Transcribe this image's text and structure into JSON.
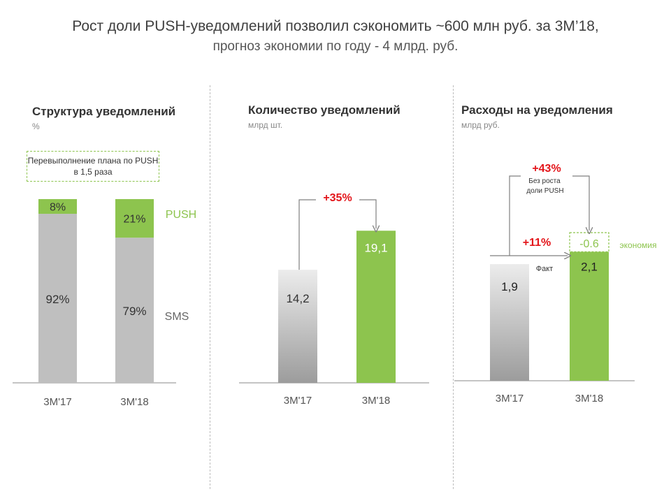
{
  "slide": {
    "title_line1": "Рост доли PUSH-уведомлений позволил сэкономить ~600 млн руб. за 3М’18,",
    "title_line2": "прогноз экономии по году - 4 млрд. руб."
  },
  "colors": {
    "green": "#8dc44e",
    "gray": "#bfbfbf",
    "red": "#e3151a",
    "dark_gray": "#9c9c9c"
  },
  "chart_data": [
    {
      "type": "bar",
      "stacked": true,
      "title": "Структура уведомлений",
      "unit": "%",
      "categories": [
        "3M'17",
        "3M'18"
      ],
      "series": [
        {
          "name": "SMS",
          "values": [
            92,
            79
          ],
          "labels": [
            "92%",
            "79%"
          ]
        },
        {
          "name": "PUSH",
          "values": [
            8,
            21
          ],
          "labels": [
            "8%",
            "21%"
          ]
        }
      ],
      "annotation": "Перевыполнение плана по PUSH в 1,5 раза"
    },
    {
      "type": "bar",
      "title": "Количество уведомлений",
      "unit": "млрд шт.",
      "categories": [
        "3M'17",
        "3M'18"
      ],
      "values": [
        14.2,
        19.1
      ],
      "labels": [
        "14,2",
        "19,1"
      ],
      "change_label": "+35%"
    },
    {
      "type": "bar",
      "title": "Расходы на уведомления",
      "unit": "млрд руб.",
      "categories": [
        "3M'17",
        "3M'18"
      ],
      "values": [
        1.9,
        2.1
      ],
      "labels": [
        "1,9",
        "2,1"
      ],
      "savings": {
        "value": 0.6,
        "label": "-0.6",
        "caption": "экономия"
      },
      "change_fact": {
        "label": "+11%",
        "caption": "Факт"
      },
      "change_no_push_growth": {
        "label": "+43%",
        "caption": "Без роста доли PUSH"
      }
    }
  ]
}
